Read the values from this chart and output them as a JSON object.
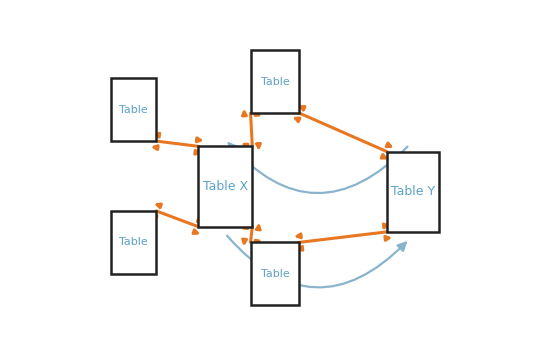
{
  "bg_color": "#ffffff",
  "box_edge_color": "#222222",
  "box_face_color": "#ffffff",
  "label_color": "#5ba3c9",
  "arrow_color": "#e87722",
  "curve_color": "#8ab4cc",
  "boxes": {
    "TableX": [
      0.28,
      0.355,
      0.155,
      0.23
    ],
    "TableY": [
      0.82,
      0.34,
      0.15,
      0.23
    ],
    "Table_TL": [
      0.03,
      0.6,
      0.13,
      0.18
    ],
    "Table_BL": [
      0.03,
      0.22,
      0.13,
      0.18
    ],
    "Table_TC": [
      0.43,
      0.68,
      0.14,
      0.18
    ],
    "Table_BC": [
      0.43,
      0.13,
      0.14,
      0.18
    ]
  },
  "font_size_main": 9,
  "font_size_label": 8,
  "arrow_lw": 2.2,
  "arrow_size": 7
}
